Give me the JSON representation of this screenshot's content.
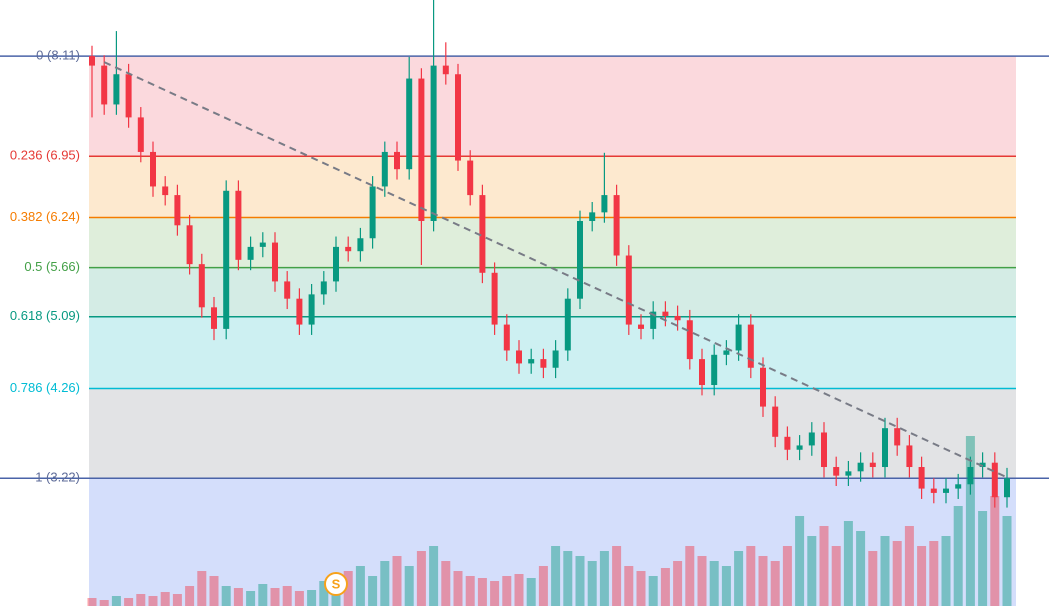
{
  "chart_data": {
    "type": "candlestick",
    "ylim": [
      1.74,
      8.76
    ],
    "up_color": "#089981",
    "down_color": "#f23645",
    "fib_levels": [
      {
        "label": "0 (8.11)",
        "price": 8.11,
        "color": "#4a63a8",
        "fill": "#fbd9dd"
      },
      {
        "label": "0.236 (6.95)",
        "price": 6.95,
        "color": "#e53935",
        "fill": "#fde9cf"
      },
      {
        "label": "0.382 (6.24)",
        "price": 6.24,
        "color": "#f57c00",
        "fill": "#dfeedb"
      },
      {
        "label": "0.5 (5.66)",
        "price": 5.66,
        "color": "#43a047",
        "fill": "#d4ece5"
      },
      {
        "label": "0.618 (5.09)",
        "price": 5.09,
        "color": "#089981",
        "fill": "#cdf0f2"
      },
      {
        "label": "0.786 (4.26)",
        "price": 4.26,
        "color": "#00bcd4",
        "fill": "#e2e3e5"
      },
      {
        "label": "1 (3.22)",
        "price": 3.22,
        "color": "#4a63a8",
        "fill": "#d4defb"
      }
    ],
    "open": [
      8.11,
      8.0,
      7.55,
      7.9,
      7.4,
      7.0,
      6.6,
      6.5,
      6.15,
      5.7,
      5.2,
      4.95,
      6.55,
      5.75,
      5.9,
      5.95,
      5.5,
      5.3,
      5.0,
      5.35,
      5.5,
      5.9,
      5.85,
      6.0,
      6.6,
      7.0,
      6.8,
      7.85,
      6.2,
      8.0,
      7.9,
      6.9,
      6.5,
      5.6,
      5.0,
      4.7,
      4.55,
      4.6,
      4.5,
      4.7,
      5.3,
      6.2,
      6.3,
      6.5,
      5.8,
      5.0,
      4.95,
      5.15,
      5.1,
      5.05,
      4.6,
      4.3,
      4.65,
      4.7,
      5.0,
      4.5,
      4.05,
      3.7,
      3.55,
      3.6,
      3.75,
      3.35,
      3.25,
      3.3,
      3.4,
      3.35,
      3.8,
      3.6,
      3.35,
      3.1,
      3.05,
      3.1,
      3.15,
      3.35,
      3.4,
      3.0
    ],
    "high": [
      8.23,
      8.12,
      8.4,
      8.02,
      7.52,
      7.12,
      6.72,
      6.62,
      6.27,
      5.82,
      5.32,
      6.67,
      6.67,
      6.02,
      6.07,
      6.07,
      5.62,
      5.42,
      5.47,
      5.62,
      6.02,
      6.02,
      6.12,
      6.72,
      7.12,
      7.12,
      8.1,
      7.97,
      8.76,
      8.27,
      8.02,
      7.02,
      6.62,
      5.72,
      5.12,
      4.82,
      4.72,
      4.72,
      4.82,
      5.42,
      6.32,
      6.42,
      6.99,
      6.62,
      5.92,
      5.12,
      5.27,
      5.27,
      5.22,
      5.17,
      4.72,
      4.77,
      4.82,
      5.12,
      5.12,
      4.62,
      4.17,
      3.82,
      3.72,
      3.87,
      3.87,
      3.47,
      3.42,
      3.52,
      3.52,
      3.92,
      3.92,
      3.72,
      3.47,
      3.22,
      3.22,
      3.27,
      3.47,
      3.52,
      3.52,
      3.34
    ],
    "low": [
      7.4,
      7.43,
      7.43,
      7.28,
      6.88,
      6.48,
      6.38,
      6.03,
      5.58,
      5.08,
      4.82,
      4.83,
      5.63,
      5.63,
      5.78,
      5.38,
      5.18,
      4.88,
      4.88,
      5.23,
      5.38,
      5.73,
      5.73,
      5.88,
      6.48,
      6.68,
      6.68,
      5.69,
      6.08,
      7.78,
      6.78,
      6.38,
      5.48,
      4.88,
      4.58,
      4.43,
      4.43,
      4.38,
      4.38,
      4.58,
      5.18,
      6.08,
      6.18,
      5.68,
      4.88,
      4.83,
      4.83,
      4.98,
      4.93,
      4.48,
      4.18,
      4.18,
      4.53,
      4.58,
      4.38,
      3.93,
      3.58,
      3.43,
      3.43,
      3.48,
      3.23,
      3.13,
      3.13,
      3.18,
      3.23,
      3.23,
      3.48,
      3.23,
      2.98,
      2.93,
      2.93,
      2.98,
      3.03,
      3.23,
      2.88,
      2.88
    ],
    "close": [
      8.0,
      7.55,
      7.9,
      7.4,
      7.0,
      6.6,
      6.5,
      6.15,
      5.7,
      5.2,
      4.95,
      6.55,
      5.75,
      5.9,
      5.95,
      5.5,
      5.3,
      5.0,
      5.35,
      5.5,
      5.9,
      5.85,
      6.0,
      6.6,
      7.0,
      6.8,
      7.85,
      6.2,
      8.0,
      7.9,
      6.9,
      6.5,
      5.6,
      5.0,
      4.7,
      4.55,
      4.6,
      4.5,
      4.7,
      5.3,
      6.2,
      6.3,
      6.5,
      5.8,
      5.0,
      4.95,
      5.15,
      5.1,
      5.05,
      4.6,
      4.3,
      4.65,
      4.7,
      5.0,
      4.5,
      4.05,
      3.7,
      3.55,
      3.6,
      3.75,
      3.35,
      3.25,
      3.3,
      3.4,
      3.35,
      3.8,
      3.6,
      3.35,
      3.1,
      3.05,
      3.1,
      3.15,
      3.35,
      3.4,
      3.0,
      3.22
    ],
    "volume": [
      8,
      6,
      10,
      8,
      12,
      10,
      14,
      12,
      20,
      35,
      30,
      20,
      18,
      15,
      22,
      18,
      20,
      15,
      16,
      25,
      30,
      35,
      40,
      30,
      45,
      50,
      40,
      55,
      60,
      45,
      35,
      30,
      28,
      25,
      30,
      32,
      28,
      40,
      60,
      55,
      50,
      45,
      55,
      60,
      40,
      35,
      30,
      38,
      45,
      60,
      50,
      45,
      40,
      55,
      60,
      50,
      45,
      60,
      90,
      70,
      80,
      60,
      85,
      75,
      55,
      70,
      65,
      80,
      60,
      65,
      70,
      100,
      170,
      95,
      110,
      90
    ],
    "vlim": [
      0,
      200
    ],
    "trendline": {
      "x": [
        1,
        75
      ],
      "y": [
        8.04,
        3.23
      ]
    },
    "markers": [
      {
        "label": "S",
        "index": 20
      }
    ]
  }
}
